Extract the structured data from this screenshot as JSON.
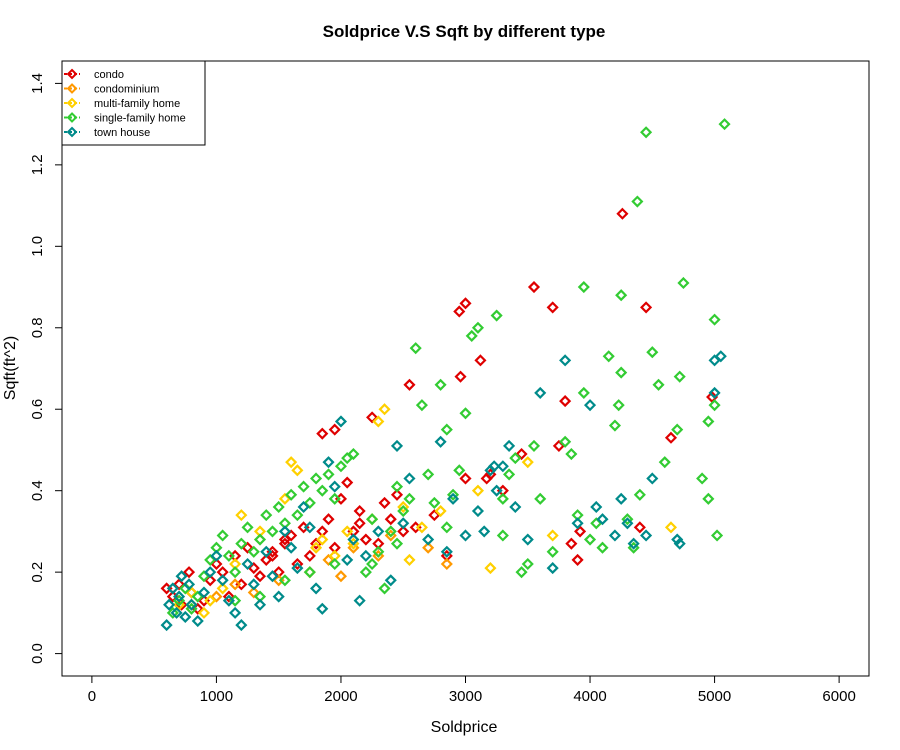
{
  "chart_data": {
    "type": "scatter",
    "title": "Soldprice V.S Sqft by different type",
    "xlabel": "Soldprice",
    "ylabel": "Sqft(ft^2)",
    "xlim": [
      -240,
      6240
    ],
    "ylim": [
      -0.055,
      1.455
    ],
    "xticks": [
      0,
      1000,
      2000,
      3000,
      4000,
      5000,
      6000
    ],
    "yticks": [
      0.0,
      0.2,
      0.4,
      0.6,
      0.8,
      1.0,
      1.2,
      1.4
    ],
    "yticks_labels": [
      "0.0",
      "0.2",
      "0.4",
      "0.6",
      "0.8",
      "1.0",
      "1.2",
      "1.4"
    ],
    "grid": false,
    "legend_position": "top-left",
    "marker": "diamond-open",
    "series": [
      {
        "name": "condo",
        "color": "#DF0000",
        "points": [
          [
            600,
            0.16
          ],
          [
            650,
            0.14
          ],
          [
            700,
            0.17
          ],
          [
            720,
            0.12
          ],
          [
            780,
            0.2
          ],
          [
            800,
            0.15
          ],
          [
            850,
            0.11
          ],
          [
            900,
            0.13
          ],
          [
            950,
            0.18
          ],
          [
            1000,
            0.22
          ],
          [
            1050,
            0.2
          ],
          [
            1100,
            0.14
          ],
          [
            1150,
            0.24
          ],
          [
            1200,
            0.17
          ],
          [
            1250,
            0.26
          ],
          [
            1300,
            0.21
          ],
          [
            1350,
            0.19
          ],
          [
            1400,
            0.23
          ],
          [
            1450,
            0.25
          ],
          [
            1500,
            0.2
          ],
          [
            1550,
            0.27
          ],
          [
            1600,
            0.29
          ],
          [
            1650,
            0.22
          ],
          [
            1700,
            0.31
          ],
          [
            1750,
            0.24
          ],
          [
            1800,
            0.27
          ],
          [
            1850,
            0.3
          ],
          [
            1900,
            0.33
          ],
          [
            1950,
            0.26
          ],
          [
            2000,
            0.38
          ],
          [
            2050,
            0.42
          ],
          [
            2100,
            0.3
          ],
          [
            2150,
            0.35
          ],
          [
            2200,
            0.28
          ],
          [
            2250,
            0.58
          ],
          [
            1850,
            0.54
          ],
          [
            1950,
            0.55
          ],
          [
            2300,
            0.27
          ],
          [
            2400,
            0.33
          ],
          [
            2500,
            0.3
          ],
          [
            2550,
            0.66
          ],
          [
            2600,
            0.31
          ],
          [
            2750,
            0.34
          ],
          [
            2850,
            0.24
          ],
          [
            2960,
            0.68
          ],
          [
            3000,
            0.86
          ],
          [
            2950,
            0.84
          ],
          [
            3120,
            0.72
          ],
          [
            3170,
            0.43
          ],
          [
            3200,
            0.44
          ],
          [
            3300,
            0.4
          ],
          [
            3450,
            0.49
          ],
          [
            3550,
            0.9
          ],
          [
            3700,
            0.85
          ],
          [
            3750,
            0.51
          ],
          [
            3800,
            0.62
          ],
          [
            3850,
            0.27
          ],
          [
            3900,
            0.23
          ],
          [
            3920,
            0.3
          ],
          [
            4260,
            1.08
          ],
          [
            4450,
            0.85
          ],
          [
            4400,
            0.31
          ],
          [
            4650,
            0.53
          ],
          [
            4980,
            0.63
          ],
          [
            3000,
            0.43
          ],
          [
            2450,
            0.39
          ],
          [
            2350,
            0.37
          ],
          [
            2150,
            0.32
          ],
          [
            1550,
            0.28
          ],
          [
            1450,
            0.24
          ]
        ]
      },
      {
        "name": "condominium",
        "color": "#FF9900",
        "points": [
          [
            800,
            0.12
          ],
          [
            1000,
            0.14
          ],
          [
            1150,
            0.17
          ],
          [
            1300,
            0.15
          ],
          [
            1500,
            0.18
          ],
          [
            1750,
            0.2
          ],
          [
            1900,
            0.23
          ],
          [
            2000,
            0.19
          ],
          [
            2100,
            0.26
          ],
          [
            2300,
            0.24
          ],
          [
            2400,
            0.29
          ],
          [
            2700,
            0.26
          ],
          [
            2850,
            0.22
          ]
        ]
      },
      {
        "name": "multi-family home",
        "color": "#FFD000",
        "points": [
          [
            700,
            0.12
          ],
          [
            800,
            0.15
          ],
          [
            900,
            0.1
          ],
          [
            950,
            0.13
          ],
          [
            1050,
            0.16
          ],
          [
            1150,
            0.22
          ],
          [
            1200,
            0.34
          ],
          [
            1350,
            0.3
          ],
          [
            1550,
            0.38
          ],
          [
            1600,
            0.47
          ],
          [
            1650,
            0.45
          ],
          [
            1800,
            0.26
          ],
          [
            1850,
            0.28
          ],
          [
            1950,
            0.24
          ],
          [
            2050,
            0.3
          ],
          [
            2100,
            0.27
          ],
          [
            2250,
            0.33
          ],
          [
            2300,
            0.57
          ],
          [
            2350,
            0.6
          ],
          [
            2500,
            0.36
          ],
          [
            2550,
            0.23
          ],
          [
            2650,
            0.31
          ],
          [
            2800,
            0.35
          ],
          [
            3100,
            0.4
          ],
          [
            3200,
            0.21
          ],
          [
            3500,
            0.47
          ],
          [
            3700,
            0.29
          ],
          [
            4650,
            0.31
          ]
        ]
      },
      {
        "name": "single-family home",
        "color": "#33CC33",
        "points": [
          [
            650,
            0.1
          ],
          [
            700,
            0.13
          ],
          [
            750,
            0.16
          ],
          [
            800,
            0.11
          ],
          [
            850,
            0.14
          ],
          [
            900,
            0.19
          ],
          [
            950,
            0.23
          ],
          [
            1000,
            0.26
          ],
          [
            1050,
            0.29
          ],
          [
            1100,
            0.24
          ],
          [
            1150,
            0.2
          ],
          [
            1200,
            0.27
          ],
          [
            1250,
            0.31
          ],
          [
            1300,
            0.25
          ],
          [
            1350,
            0.28
          ],
          [
            1400,
            0.34
          ],
          [
            1450,
            0.3
          ],
          [
            1500,
            0.36
          ],
          [
            1550,
            0.32
          ],
          [
            1600,
            0.39
          ],
          [
            1650,
            0.34
          ],
          [
            1700,
            0.41
          ],
          [
            1750,
            0.37
          ],
          [
            1800,
            0.43
          ],
          [
            1850,
            0.4
          ],
          [
            1900,
            0.44
          ],
          [
            1950,
            0.38
          ],
          [
            2000,
            0.46
          ],
          [
            2050,
            0.48
          ],
          [
            2100,
            0.49
          ],
          [
            2200,
            0.2
          ],
          [
            2250,
            0.33
          ],
          [
            2300,
            0.25
          ],
          [
            2350,
            0.16
          ],
          [
            2400,
            0.3
          ],
          [
            2450,
            0.41
          ],
          [
            2500,
            0.35
          ],
          [
            2550,
            0.38
          ],
          [
            2600,
            0.75
          ],
          [
            2650,
            0.61
          ],
          [
            2700,
            0.44
          ],
          [
            2750,
            0.37
          ],
          [
            2800,
            0.66
          ],
          [
            2850,
            0.55
          ],
          [
            2900,
            0.39
          ],
          [
            2950,
            0.45
          ],
          [
            3000,
            0.59
          ],
          [
            3050,
            0.78
          ],
          [
            3100,
            0.8
          ],
          [
            3250,
            0.83
          ],
          [
            3300,
            0.38
          ],
          [
            3350,
            0.44
          ],
          [
            3400,
            0.48
          ],
          [
            3450,
            0.2
          ],
          [
            3500,
            0.22
          ],
          [
            3550,
            0.51
          ],
          [
            3600,
            0.38
          ],
          [
            3700,
            0.25
          ],
          [
            3800,
            0.52
          ],
          [
            3850,
            0.49
          ],
          [
            3900,
            0.34
          ],
          [
            3950,
            0.64
          ],
          [
            3950,
            0.9
          ],
          [
            4000,
            0.28
          ],
          [
            4050,
            0.32
          ],
          [
            4100,
            0.26
          ],
          [
            4150,
            0.73
          ],
          [
            4200,
            0.56
          ],
          [
            4230,
            0.61
          ],
          [
            4250,
            0.88
          ],
          [
            4300,
            0.33
          ],
          [
            4350,
            0.26
          ],
          [
            4380,
            1.11
          ],
          [
            4400,
            0.39
          ],
          [
            4450,
            1.28
          ],
          [
            4500,
            0.74
          ],
          [
            4550,
            0.66
          ],
          [
            4600,
            0.47
          ],
          [
            4700,
            0.55
          ],
          [
            4720,
            0.68
          ],
          [
            4750,
            0.91
          ],
          [
            4900,
            0.43
          ],
          [
            4950,
            0.57
          ],
          [
            4950,
            0.38
          ],
          [
            5000,
            0.82
          ],
          [
            5000,
            0.61
          ],
          [
            5020,
            0.29
          ],
          [
            5080,
            1.3
          ],
          [
            4250,
            0.69
          ],
          [
            3300,
            0.29
          ],
          [
            2850,
            0.31
          ],
          [
            2450,
            0.27
          ],
          [
            2250,
            0.22
          ],
          [
            1950,
            0.22
          ],
          [
            1750,
            0.2
          ],
          [
            1550,
            0.18
          ],
          [
            1350,
            0.14
          ],
          [
            1150,
            0.13
          ]
        ]
      },
      {
        "name": "town house",
        "color": "#008B8B",
        "points": [
          [
            600,
            0.07
          ],
          [
            620,
            0.12
          ],
          [
            650,
            0.16
          ],
          [
            680,
            0.1
          ],
          [
            700,
            0.14
          ],
          [
            720,
            0.19
          ],
          [
            750,
            0.09
          ],
          [
            780,
            0.17
          ],
          [
            800,
            0.12
          ],
          [
            850,
            0.08
          ],
          [
            900,
            0.15
          ],
          [
            950,
            0.2
          ],
          [
            1000,
            0.24
          ],
          [
            1050,
            0.18
          ],
          [
            1100,
            0.13
          ],
          [
            1150,
            0.1
          ],
          [
            1200,
            0.07
          ],
          [
            1250,
            0.22
          ],
          [
            1300,
            0.17
          ],
          [
            1350,
            0.12
          ],
          [
            1400,
            0.25
          ],
          [
            1450,
            0.19
          ],
          [
            1500,
            0.14
          ],
          [
            1550,
            0.3
          ],
          [
            1600,
            0.26
          ],
          [
            1650,
            0.21
          ],
          [
            1700,
            0.36
          ],
          [
            1750,
            0.31
          ],
          [
            1800,
            0.16
          ],
          [
            1850,
            0.11
          ],
          [
            1900,
            0.47
          ],
          [
            1950,
            0.41
          ],
          [
            2000,
            0.57
          ],
          [
            2050,
            0.23
          ],
          [
            2100,
            0.28
          ],
          [
            2150,
            0.13
          ],
          [
            2200,
            0.24
          ],
          [
            2300,
            0.3
          ],
          [
            2400,
            0.18
          ],
          [
            2450,
            0.51
          ],
          [
            2500,
            0.32
          ],
          [
            2550,
            0.43
          ],
          [
            2700,
            0.28
          ],
          [
            2800,
            0.52
          ],
          [
            2850,
            0.25
          ],
          [
            2900,
            0.38
          ],
          [
            3000,
            0.29
          ],
          [
            3100,
            0.35
          ],
          [
            3150,
            0.3
          ],
          [
            3200,
            0.45
          ],
          [
            3250,
            0.4
          ],
          [
            3300,
            0.46
          ],
          [
            3350,
            0.51
          ],
          [
            3400,
            0.36
          ],
          [
            3500,
            0.28
          ],
          [
            3600,
            0.64
          ],
          [
            3700,
            0.21
          ],
          [
            3800,
            0.72
          ],
          [
            3900,
            0.32
          ],
          [
            4000,
            0.61
          ],
          [
            4050,
            0.36
          ],
          [
            4100,
            0.33
          ],
          [
            4200,
            0.29
          ],
          [
            4250,
            0.38
          ],
          [
            4300,
            0.32
          ],
          [
            4350,
            0.27
          ],
          [
            4450,
            0.29
          ],
          [
            4500,
            0.43
          ],
          [
            4700,
            0.28
          ],
          [
            4720,
            0.27
          ],
          [
            5000,
            0.72
          ],
          [
            5050,
            0.73
          ],
          [
            5000,
            0.64
          ],
          [
            3230,
            0.46
          ]
        ]
      }
    ]
  }
}
